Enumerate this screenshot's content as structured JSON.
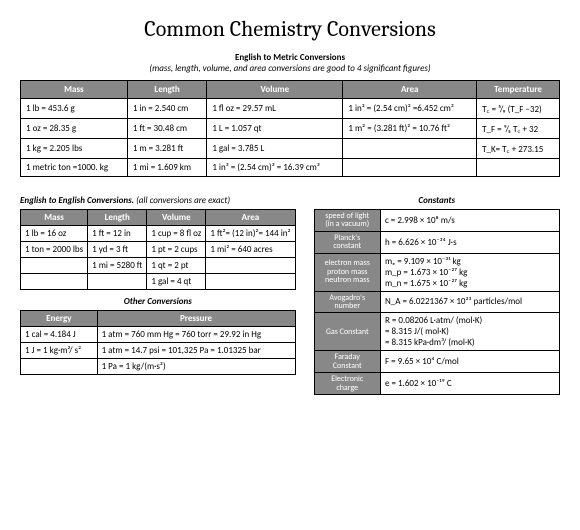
{
  "title": "Common Chemistry Conversions",
  "section1": {
    "title": "English to Metric Conversions",
    "sub": "(mass, length, volume, and area conversions are good to 4 significant figures)",
    "headers": [
      "Mass",
      "Length",
      "Volume",
      "Area",
      "Temperature"
    ],
    "rows": [
      [
        "1 lb = 453.6 g",
        "1 in = 2.540 cm",
        "1 fl oz = 29.57 mL",
        "1 in² = (2.54 cm)² =6.452 cm²",
        "T꜀ = ⁵/₉ (T_F −32)"
      ],
      [
        "1 oz = 28.35 g",
        "1 ft = 30.48 cm",
        "1 L = 1.057 qt",
        "1 m² = (3.281 ft)² = 10.76 ft²",
        "T_F = ⁹/₅ T꜀ + 32"
      ],
      [
        "1 kg = 2.205 lbs",
        "1 m = 3.281 ft",
        "1 gal = 3.785 L",
        "",
        "T_K= T꜀ + 273.15"
      ],
      [
        "1 metric ton =1000. kg",
        "1 mi = 1.609 km",
        "1 in³ = (2.54 cm)³ = 16.39 cm³",
        "",
        ""
      ]
    ]
  },
  "section2": {
    "title": "English to English Conversions.",
    "note": " (all conversions are exact)",
    "headers": [
      "Mass",
      "Length",
      "Volume",
      "Area"
    ],
    "rows": [
      [
        "1 lb = 16 oz",
        "1 ft = 12 in",
        "1 cup = 8 fl oz",
        "1 ft²= (12 in)²= 144 in²"
      ],
      [
        "1 ton = 2000 lbs",
        "1 yd = 3 ft",
        "1 pt = 2 cups",
        "1 mi² = 640 acres"
      ],
      [
        "",
        "1 mi = 5280 ft",
        "1 qt = 2 pt",
        ""
      ],
      [
        "",
        "",
        "1 gal = 4 qt",
        ""
      ]
    ]
  },
  "section3": {
    "title": "Other Conversions",
    "headers": [
      "Energy",
      "Pressure"
    ],
    "rows": [
      [
        "1 cal = 4.184 J",
        "1 atm = 760 mm Hg = 760 torr = 29.92 in Hg"
      ],
      [
        "1 J = 1 kg·m²/ s²",
        "1 atm = 14.7 psi = 101,325 Pa = 1.01325 bar"
      ],
      [
        "",
        "1 Pa = 1 kg/(m·s²)"
      ]
    ]
  },
  "constants": {
    "title": "Constants",
    "rows": [
      {
        "label": "speed of light\n(in a vacuum)",
        "value": "c = 2.998 × 10⁸ m/s"
      },
      {
        "label": "Planck's\nconstant",
        "value": "h = 6.626 × 10⁻³⁴ J·s"
      },
      {
        "label": "electron mass\nproton mass\nneutron mass",
        "value": "mₑ = 9.109 × 10⁻³¹ kg\nm_p = 1.673 × 10⁻²⁷ kg\nm_n = 1.675 × 10⁻²⁷ kg"
      },
      {
        "label": "Avogadro's\nnumber",
        "value": "N_A = 6.0221367 × 10²³  particles/mol"
      },
      {
        "label": "Gas Constant",
        "value": "R = 0.08206 L·atm/ (mol·K)\n   = 8.315 J/( mol·K)\n   = 8.315 kPa·dm³/ (mol·K)"
      },
      {
        "label": "Faraday\nConstant",
        "value": "F = 9.65 × 10⁴ C/mol"
      },
      {
        "label": "Electronic\ncharge",
        "value": "e = 1.602 × 10⁻¹⁹ C"
      }
    ]
  }
}
